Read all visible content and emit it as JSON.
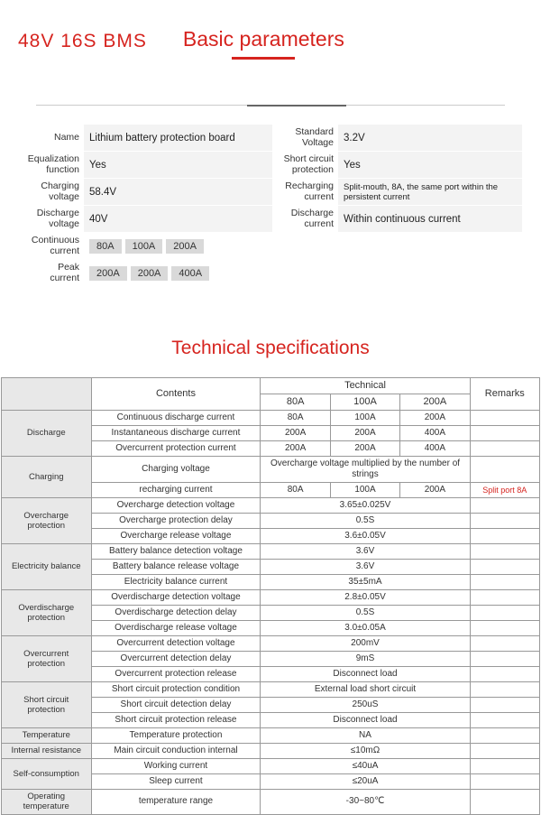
{
  "header": {
    "left": "48V  16S BMS",
    "right": "Basic parameters"
  },
  "params": {
    "rows": [
      {
        "l1": "Name",
        "v1": "Lithium battery protection board",
        "l2": "Standard\nVoltage",
        "v2": "3.2V"
      },
      {
        "l1": "Equalization\nfunction",
        "v1": "Yes",
        "l2": "Short circuit\nprotection",
        "v2": "Yes"
      },
      {
        "l1": "Charging\nvoltage",
        "v1": "58.4V",
        "l2": "Recharging\ncurrent",
        "v2": "Split-mouth, 8A, the same port within the persistent current"
      },
      {
        "l1": "Discharge\nvoltage",
        "v1": "40V",
        "l2": "Discharge\ncurrent",
        "v2": "Within continuous current"
      }
    ],
    "continuous_label": "Continuous\ncurrent",
    "continuous_chips": [
      "80A",
      "100A",
      "200A"
    ],
    "peak_label": "Peak\ncurrent",
    "peak_chips": [
      "200A",
      "200A",
      "400A"
    ]
  },
  "tech": {
    "title": "Technical specifications",
    "head": {
      "contents": "Contents",
      "technical": "Technical",
      "remarks": "Remarks",
      "cols": [
        "80A",
        "100A",
        "200A"
      ]
    },
    "groups": [
      {
        "cat": "Discharge",
        "rows": [
          {
            "label": "Continuous discharge current",
            "vals": [
              "80A",
              "100A",
              "200A"
            ],
            "rem": ""
          },
          {
            "label": "Instantaneous discharge current",
            "vals": [
              "200A",
              "200A",
              "400A"
            ],
            "rem": ""
          },
          {
            "label": "Overcurrent protection current",
            "vals": [
              "200A",
              "200A",
              "400A"
            ],
            "rem": ""
          }
        ]
      },
      {
        "cat": "Charging",
        "rows": [
          {
            "label": "Charging voltage",
            "merged": "Overcharge voltage multiplied by the number of strings",
            "rem": ""
          },
          {
            "label": "recharging current",
            "vals": [
              "80A",
              "100A",
              "200A"
            ],
            "rem": "Split port 8A",
            "rem_red": true
          }
        ]
      },
      {
        "cat": "Overcharge protection",
        "rows": [
          {
            "label": "Overcharge detection voltage",
            "merged": "3.65±0.025V",
            "rem": ""
          },
          {
            "label": "Overcharge protection delay",
            "merged": "0.5S",
            "rem": ""
          },
          {
            "label": "Overcharge release voltage",
            "merged": "3.6±0.05V",
            "rem": ""
          }
        ]
      },
      {
        "cat": "Electricity balance",
        "rows": [
          {
            "label": "Battery balance detection voltage",
            "merged": "3.6V",
            "rem": ""
          },
          {
            "label": "Battery balance release voltage",
            "merged": "3.6V",
            "rem": ""
          },
          {
            "label": "Electricity balance current",
            "merged": "35±5mA",
            "rem": ""
          }
        ]
      },
      {
        "cat": "Overdischarge\nprotection",
        "rows": [
          {
            "label": "Overdischarge detection voltage",
            "merged": "2.8±0.05V",
            "rem": ""
          },
          {
            "label": "Overdischarge detection delay",
            "merged": "0.5S",
            "rem": ""
          },
          {
            "label": "Overdischarge release voltage",
            "merged": "3.0±0.05A",
            "rem": ""
          }
        ]
      },
      {
        "cat": "Overcurrent protection",
        "rows": [
          {
            "label": "Overcurrent detection voltage",
            "merged": "200mV",
            "rem": ""
          },
          {
            "label": "Overcurrent detection delay",
            "merged": "9mS",
            "rem": ""
          },
          {
            "label": "Overcurrent protection release",
            "merged": "Disconnect load",
            "rem": ""
          }
        ]
      },
      {
        "cat": "Short circuit\nprotection",
        "rows": [
          {
            "label": "Short circuit protection condition",
            "merged": "External load short circuit",
            "rem": ""
          },
          {
            "label": "Short circuit detection delay",
            "merged": "250uS",
            "rem": ""
          },
          {
            "label": "Short circuit protection release",
            "merged": "Disconnect load",
            "rem": ""
          }
        ]
      },
      {
        "cat": "Temperature",
        "rows": [
          {
            "label": "Temperature protection",
            "merged": "NA",
            "rem": ""
          }
        ]
      },
      {
        "cat": "Internal resistance",
        "rows": [
          {
            "label": "Main circuit conduction internal",
            "merged": "≤10mΩ",
            "rem": ""
          }
        ]
      },
      {
        "cat": "Self-consumption",
        "rows": [
          {
            "label": "Working current",
            "merged": "≤40uA",
            "rem": ""
          },
          {
            "label": "Sleep current",
            "merged": "≤20uA",
            "rem": ""
          }
        ]
      },
      {
        "cat": "Operating temperature",
        "rows": [
          {
            "label": "temperature range",
            "merged": "-30~80℃",
            "rem": ""
          }
        ]
      }
    ]
  },
  "style": {
    "accent_color": "#d6241f",
    "border_color": "#999999",
    "cat_bg": "#e8e8e8"
  }
}
